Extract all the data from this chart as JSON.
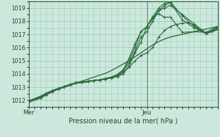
{
  "title": "",
  "xlabel": "Pression niveau de la mer( hPa )",
  "bg_color": "#cce8dc",
  "grid_color": "#99ccb8",
  "line_color": "#2d6e3e",
  "tick_color": "#1a4a28",
  "ylim": [
    1011.5,
    1019.5
  ],
  "xlim": [
    0,
    96
  ],
  "yticks": [
    1012,
    1013,
    1014,
    1015,
    1016,
    1017,
    1018,
    1019
  ],
  "xtick_positions": [
    0,
    60
  ],
  "xtick_labels": [
    "Mer",
    "Jeu"
  ],
  "vline_x": 60,
  "series": [
    {
      "x": [
        0,
        3,
        6,
        9,
        12,
        15,
        18,
        21,
        24,
        27,
        30,
        33,
        36,
        39,
        42,
        45,
        48,
        51,
        54,
        57,
        60,
        63,
        66,
        69,
        72,
        75,
        78,
        81,
        84,
        87,
        90,
        93,
        96
      ],
      "y": [
        1011.9,
        1012.05,
        1012.2,
        1012.45,
        1012.65,
        1012.85,
        1013.0,
        1013.15,
        1013.3,
        1013.45,
        1013.6,
        1013.75,
        1013.9,
        1014.05,
        1014.25,
        1014.5,
        1014.75,
        1015.0,
        1015.3,
        1015.6,
        1015.9,
        1016.2,
        1016.45,
        1016.65,
        1016.8,
        1016.9,
        1017.0,
        1017.1,
        1017.2,
        1017.3,
        1017.4,
        1017.5,
        1017.6
      ],
      "marker": false,
      "lw": 1.0
    },
    {
      "x": [
        0,
        6,
        9,
        12,
        15,
        18,
        21,
        24,
        27,
        30,
        33,
        36,
        39,
        42,
        45,
        48,
        51,
        54,
        57,
        60,
        63,
        66,
        69,
        72,
        75,
        78,
        81,
        84,
        87,
        90,
        93,
        96
      ],
      "y": [
        1011.95,
        1012.3,
        1012.5,
        1012.7,
        1012.9,
        1013.05,
        1013.2,
        1013.3,
        1013.35,
        1013.4,
        1013.5,
        1013.55,
        1013.6,
        1013.7,
        1013.8,
        1014.1,
        1014.5,
        1015.0,
        1015.4,
        1015.6,
        1016.0,
        1016.8,
        1017.3,
        1017.6,
        1017.75,
        1017.85,
        1017.9,
        1017.7,
        1017.35,
        1017.1,
        1017.2,
        1017.5
      ],
      "marker": true,
      "lw": 0.9
    },
    {
      "x": [
        0,
        6,
        9,
        12,
        15,
        18,
        21,
        24,
        27,
        30,
        33,
        36,
        39,
        42,
        45,
        48,
        51,
        54,
        57,
        60,
        63,
        66,
        69,
        72,
        78,
        84,
        90,
        96
      ],
      "y": [
        1011.95,
        1012.3,
        1012.55,
        1012.75,
        1012.9,
        1013.05,
        1013.2,
        1013.35,
        1013.4,
        1013.45,
        1013.5,
        1013.55,
        1013.65,
        1013.7,
        1013.8,
        1014.0,
        1014.6,
        1015.6,
        1016.4,
        1017.6,
        1018.35,
        1018.55,
        1018.3,
        1018.3,
        1017.15,
        1017.2,
        1017.15,
        1017.6
      ],
      "marker": true,
      "lw": 0.9
    },
    {
      "x": [
        0,
        6,
        9,
        12,
        15,
        18,
        21,
        24,
        27,
        30,
        33,
        36,
        39,
        42,
        45,
        48,
        51,
        54,
        57,
        60,
        63,
        66,
        69,
        72,
        78,
        84,
        90,
        96
      ],
      "y": [
        1011.95,
        1012.25,
        1012.5,
        1012.7,
        1012.85,
        1013.0,
        1013.15,
        1013.3,
        1013.35,
        1013.4,
        1013.5,
        1013.55,
        1013.65,
        1013.75,
        1013.95,
        1014.3,
        1015.2,
        1016.3,
        1017.2,
        1017.55,
        1018.2,
        1018.8,
        1019.0,
        1019.2,
        1018.5,
        1017.8,
        1017.1,
        1017.5
      ],
      "marker": true,
      "lw": 0.9
    },
    {
      "x": [
        0,
        6,
        9,
        12,
        15,
        18,
        21,
        24,
        27,
        30,
        33,
        36,
        39,
        42,
        45,
        48,
        51,
        54,
        57,
        60,
        63,
        66,
        69,
        72,
        78,
        84,
        90,
        96
      ],
      "y": [
        1011.9,
        1012.2,
        1012.45,
        1012.65,
        1012.85,
        1013.0,
        1013.15,
        1013.3,
        1013.35,
        1013.4,
        1013.5,
        1013.55,
        1013.65,
        1013.75,
        1013.9,
        1014.2,
        1014.8,
        1015.7,
        1016.8,
        1017.2,
        1018.0,
        1018.8,
        1019.2,
        1019.4,
        1018.1,
        1017.5,
        1017.05,
        1017.4
      ],
      "marker": true,
      "lw": 0.9
    },
    {
      "x": [
        0,
        6,
        9,
        12,
        15,
        18,
        21,
        24,
        27,
        30,
        33,
        36,
        39,
        42,
        45,
        48,
        51,
        54,
        57,
        60,
        63,
        66,
        69,
        72,
        78,
        84,
        90,
        96
      ],
      "y": [
        1011.85,
        1012.15,
        1012.4,
        1012.65,
        1012.85,
        1013.0,
        1013.15,
        1013.3,
        1013.35,
        1013.45,
        1013.5,
        1013.55,
        1013.65,
        1013.75,
        1013.95,
        1014.3,
        1015.0,
        1016.0,
        1017.2,
        1017.6,
        1018.3,
        1019.0,
        1019.35,
        1019.45,
        1018.4,
        1017.6,
        1017.05,
        1017.35
      ],
      "marker": true,
      "lw": 0.9
    }
  ]
}
